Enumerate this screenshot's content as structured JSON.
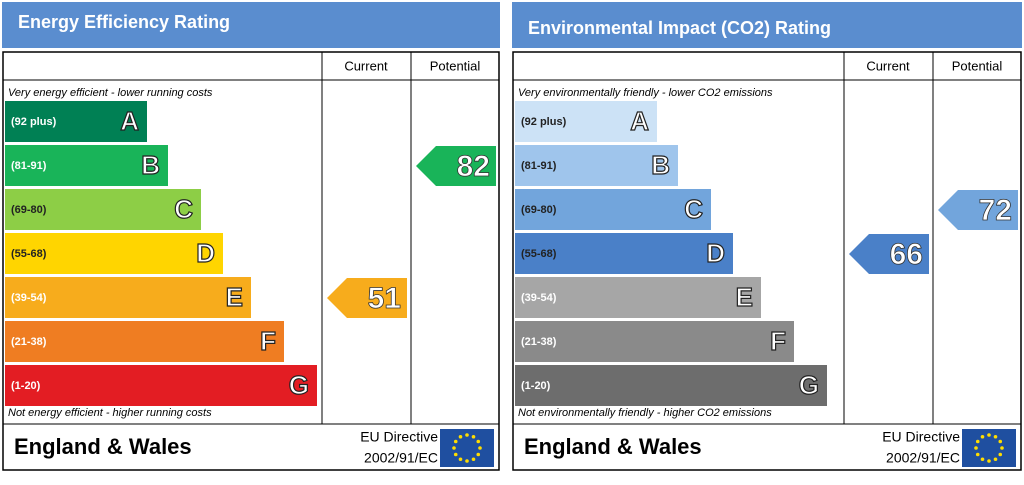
{
  "panels": [
    {
      "title": "Energy Efficiency Rating",
      "columns": [
        "Current",
        "Potential"
      ],
      "top_note": "Very energy efficient - lower running costs",
      "bands": [
        {
          "range": "(92 plus)",
          "letter": "A",
          "color": "#008054"
        },
        {
          "range": "(81-91)",
          "letter": "B",
          "color": "#19b459"
        },
        {
          "range": "(69-80)",
          "letter": "C",
          "color": "#8dce46"
        },
        {
          "range": "(55-68)",
          "letter": "D",
          "color": "#ffd500"
        },
        {
          "range": "(39-54)",
          "letter": "E",
          "color": "#f7ac1c"
        },
        {
          "range": "(21-38)",
          "letter": "F",
          "color": "#ef7d22"
        },
        {
          "range": "(1-20)",
          "letter": "G",
          "color": "#e31d23"
        }
      ],
      "bottom_note": "Not energy efficient - higher running costs",
      "country": "England & Wales",
      "directive": [
        "EU Directive",
        "2002/91/EC"
      ],
      "current": 51,
      "potential": 82
    },
    {
      "title": "Environmental Impact (CO2) Rating",
      "columns": [
        "Current",
        "Potential"
      ],
      "top_note": "Very environmentally friendly - lower CO2 emissions",
      "bands": [
        {
          "range": "(92 plus)",
          "letter": "A",
          "color": "#cce2f6"
        },
        {
          "range": "(81-91)",
          "letter": "B",
          "color": "#9fc5ec"
        },
        {
          "range": "(69-80)",
          "letter": "C",
          "color": "#72a5dc"
        },
        {
          "range": "(55-68)",
          "letter": "D",
          "color": "#4a80c8"
        },
        {
          "range": "(39-54)",
          "letter": "E",
          "color": "#a6a6a6"
        },
        {
          "range": "(21-38)",
          "letter": "F",
          "color": "#8a8a8a"
        },
        {
          "range": "(1-20)",
          "letter": "G",
          "color": "#6d6d6d"
        }
      ],
      "bottom_note": "Not environmentally friendly - higher CO2 emissions",
      "country": "England & Wales",
      "directive": [
        "EU Directive",
        "2002/91/EC"
      ],
      "current": 66,
      "potential": 72
    }
  ]
}
